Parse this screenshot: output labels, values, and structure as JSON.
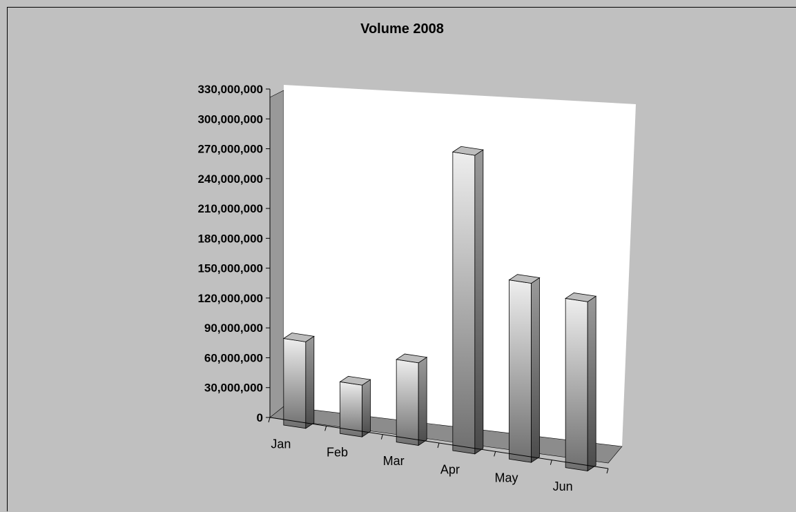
{
  "chart_data": {
    "type": "bar",
    "title": "Volume 2008",
    "xlabel": "",
    "ylabel": "",
    "categories": [
      "Jan",
      "Feb",
      "Mar",
      "Apr",
      "May",
      "Jun"
    ],
    "values": [
      87000000,
      52000000,
      83000000,
      300000000,
      180000000,
      170000000
    ],
    "ylim": [
      0,
      330000000
    ],
    "yticks": [
      {
        "value": 0,
        "label": "0"
      },
      {
        "value": 30000000,
        "label": "30,000,000"
      },
      {
        "value": 60000000,
        "label": "60,000,000"
      },
      {
        "value": 90000000,
        "label": "90,000,000"
      },
      {
        "value": 120000000,
        "label": "120,000,000"
      },
      {
        "value": 150000000,
        "label": "150,000,000"
      },
      {
        "value": 180000000,
        "label": "180,000,000"
      },
      {
        "value": 210000000,
        "label": "210,000,000"
      },
      {
        "value": 240000000,
        "label": "240,000,000"
      },
      {
        "value": 270000000,
        "label": "270,000,000"
      },
      {
        "value": 300000000,
        "label": "300,000,000"
      },
      {
        "value": 330000000,
        "label": "330,000,000"
      }
    ],
    "grid": false,
    "legend": "none",
    "style": "3d-column",
    "colors": {
      "background": "#c0c0c0",
      "plot_area": "#ffffff",
      "wall_side": "#999999",
      "floor": "#8c8c8c",
      "bar_light": "#eeeeee",
      "bar_dark": "#6e6e6e"
    }
  }
}
